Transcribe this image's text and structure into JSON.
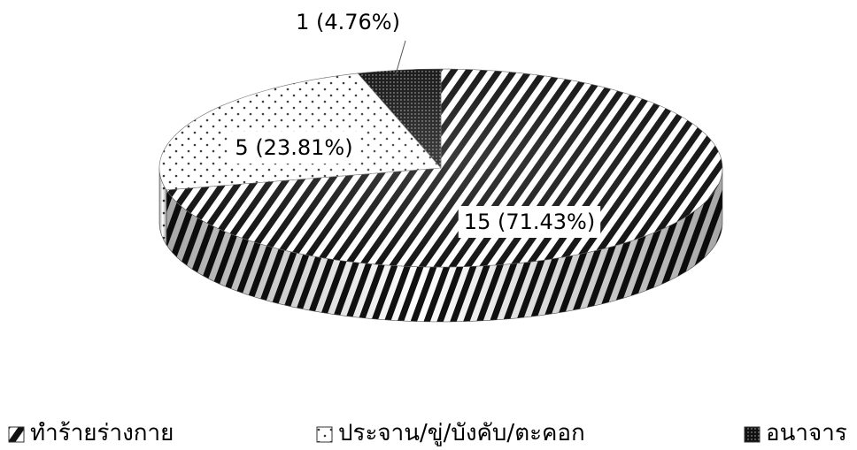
{
  "chart_data": {
    "type": "pie",
    "style": "3d",
    "title": "",
    "categories": [
      "ทำร้ายร่างกาย",
      "ประจาน/ขู่/บังคับ/ตะคอก",
      "อนาจาร"
    ],
    "values": [
      15,
      5,
      1
    ],
    "data_labels": [
      "15 (71.43%)",
      "5 (23.81%)",
      "1 (4.76%)"
    ],
    "patterns": [
      "diagonal-stripes",
      "dots",
      "dense-dots-dark"
    ],
    "legend_position": "bottom"
  }
}
